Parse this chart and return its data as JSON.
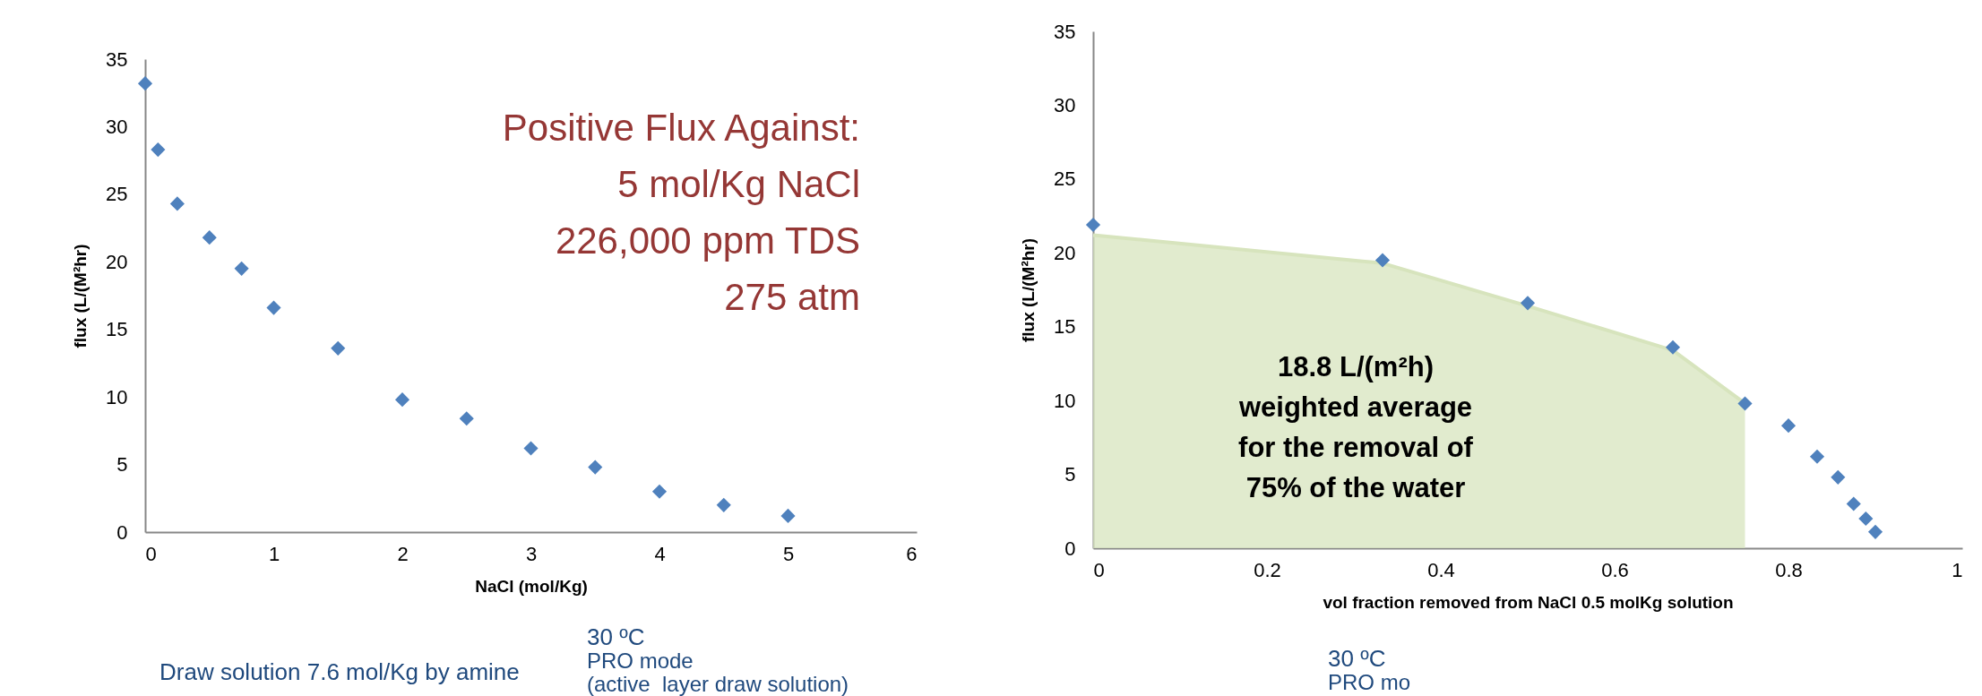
{
  "chart_data": [
    {
      "type": "scatter",
      "xlabel": "NaCl (mol/Kg)",
      "ylabel": "flux (L/(M²hr)",
      "xlim": [
        0,
        6
      ],
      "ylim": [
        0,
        35
      ],
      "xticks": [
        0,
        1,
        2,
        3,
        4,
        5,
        6
      ],
      "yticks": [
        0,
        5,
        10,
        15,
        20,
        25,
        30,
        35
      ],
      "marker": "diamond",
      "annotations": [
        "Positive Flux Against:",
        "5 mol/Kg NaCl",
        "226,000 ppm TDS",
        "275 atm",
        "Draw solution 7.6 mol/Kg by amine",
        "30 ºC",
        "PRO mode",
        "(active  layer draw solution)"
      ],
      "series": [
        {
          "type": "scatter",
          "color": "#4f81bd",
          "x": [
            0,
            0.1,
            0.25,
            0.5,
            0.75,
            1,
            1.5,
            2,
            2.5,
            3,
            3.5,
            4,
            4.5,
            5
          ],
          "values": [
            33.2,
            28.3,
            24.3,
            21.8,
            19.5,
            16.6,
            13.6,
            9.8,
            8.4,
            6.2,
            4.8,
            3.0,
            2.0,
            1.2
          ]
        }
      ]
    },
    {
      "type": "scatter",
      "xlabel": "vol fraction removed from NaCl 0.5 molKg solution",
      "ylabel": "flux (L/(M²hr)",
      "xlim": [
        0,
        1
      ],
      "ylim": [
        0,
        35
      ],
      "xticks": [
        0,
        0.2,
        0.4,
        0.6,
        0.8,
        1
      ],
      "yticks": [
        0,
        5,
        10,
        15,
        20,
        25,
        30,
        35
      ],
      "marker": "diamond",
      "annotations": [
        "18.8 L/(m²h)",
        "weighted average",
        "for the removal of",
        "75% of the water",
        "30 ºC",
        "PRO mo"
      ],
      "series": [
        {
          "type": "area",
          "color": "#d7e4bd",
          "marker": "none",
          "x": [
            0,
            0.333,
            0.5,
            0.667,
            0.75
          ],
          "values": [
            21.2,
            19.3,
            16.4,
            13.4,
            9.8
          ]
        },
        {
          "type": "scatter",
          "color": "#4f81bd",
          "x": [
            0,
            0.333,
            0.5,
            0.667,
            0.75,
            0.8,
            0.833,
            0.857,
            0.875,
            0.889,
            0.9
          ],
          "values": [
            21.9,
            19.5,
            16.6,
            13.6,
            9.8,
            8.3,
            6.2,
            4.8,
            3.0,
            2.0,
            1.1
          ]
        }
      ]
    }
  ]
}
